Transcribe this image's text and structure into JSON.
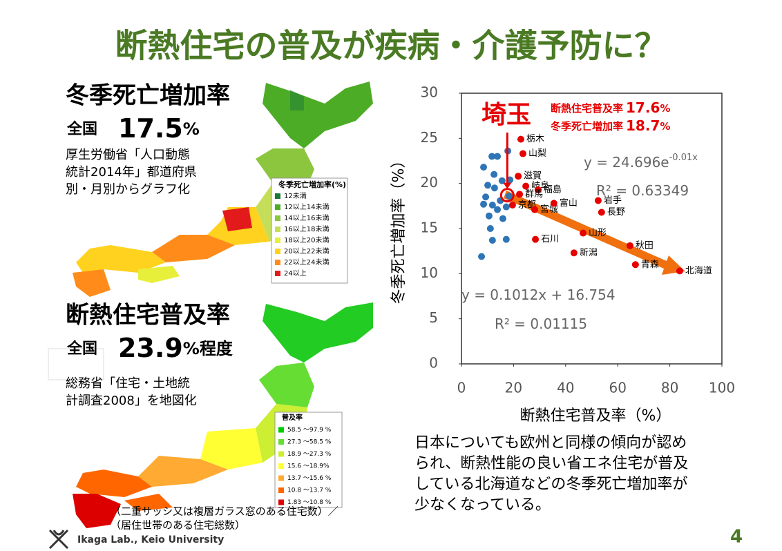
{
  "title": "断熱住宅の普及が疾病・介護予防に？",
  "left_top": {
    "heading": "冬季死亡増加率",
    "national": "全国",
    "value": "17.5",
    "unit": "%",
    "source": [
      "厚生労働省「人口動態",
      "統計2014年」都道府県",
      "別・月別からグラフ化"
    ]
  },
  "map1_legend": {
    "title": "冬季死亡増加率(%)",
    "items": [
      {
        "label": "12未満",
        "color": "#1b7837"
      },
      {
        "label": "12以上14未満",
        "color": "#4dac26"
      },
      {
        "label": "14以上16未満",
        "color": "#8cc63f"
      },
      {
        "label": "16以上18未満",
        "color": "#c5de5a"
      },
      {
        "label": "18以上20未満",
        "color": "#e8ef3a"
      },
      {
        "label": "20以上22未満",
        "color": "#ffd21f"
      },
      {
        "label": "22以上24未満",
        "color": "#ff8c1a"
      },
      {
        "label": "24以上",
        "color": "#e31a1c"
      }
    ]
  },
  "left_bottom": {
    "heading": "断熱住宅普及率",
    "national": "全国",
    "value": "23.9",
    "unit": "%程度",
    "source": [
      "総務省「住宅・土地統",
      "計調査2008」を地図化"
    ]
  },
  "map2_legend": {
    "title": "普及率",
    "items": [
      {
        "label": "58.5 ～97.9 %",
        "color": "#00cc00"
      },
      {
        "label": "27.3 ～58.5 %",
        "color": "#66dd33"
      },
      {
        "label": "18.9 ～27.3 %",
        "color": "#ccee33"
      },
      {
        "label": "15.6 ～18.9%",
        "color": "#ffff33"
      },
      {
        "label": "13.7 ～15.6 %",
        "color": "#ffaa33"
      },
      {
        "label": "10.8 ～13.7 %",
        "color": "#ff6600"
      },
      {
        "label": "1.83 ～10.8 %",
        "color": "#dd0000"
      }
    ]
  },
  "map2_note": [
    "（二重サッシ又は複層ガラス窓のある住宅数）／",
    "（居住世帯のある住宅総数）"
  ],
  "chart_data": {
    "type": "scatter",
    "xlabel": "断熱住宅普及率（%）",
    "ylabel": "冬季死亡増加率（%）",
    "xlim": [
      0,
      100
    ],
    "xticks": [
      0,
      20,
      40,
      60,
      80,
      100
    ],
    "ylim": [
      0,
      30
    ],
    "yticks": [
      0,
      5,
      10,
      15,
      20,
      25,
      30
    ],
    "series": [
      {
        "color": "#2e75b6",
        "x": [
          7.7,
          8.5,
          11.7,
          13.8,
          17.8,
          12.5,
          9.3,
          8.5,
          11.9,
          13.8,
          10.6,
          15.9,
          11.1,
          11.9,
          17.2,
          17.2,
          18.6,
          15.6,
          10.1,
          14.9,
          12.7,
          18.3
        ],
        "values": [
          11.9,
          21.8,
          23.0,
          23.0,
          23.6,
          21.0,
          18.5,
          17.7,
          17.6,
          17.1,
          16.4,
          16.1,
          15.0,
          13.7,
          13.8,
          17.4,
          20.4,
          20.3,
          19.8,
          18.1,
          19.5,
          18.6
        ]
      },
      {
        "color": "#e60000",
        "x": [
          22.8,
          23.6,
          21.8,
          24.7,
          29.4,
          22.3,
          19.6,
          28.1,
          35.5,
          52.5,
          53.8,
          46.7,
          28.4,
          64.7,
          43.2,
          66.8,
          83.8
        ],
        "values": [
          24.9,
          23.3,
          20.8,
          19.7,
          19.3,
          18.8,
          17.6,
          17.1,
          17.8,
          18.1,
          16.8,
          14.5,
          13.8,
          13.1,
          12.3,
          11.0,
          10.3
        ],
        "point_labels": [
          "栃木",
          "山梨",
          "滋賀",
          "岐阜",
          "福島",
          "群馬",
          "京都",
          "宮城",
          "富山",
          "岩手",
          "長野",
          "山形",
          "石川",
          "秋田",
          "新潟",
          "青森",
          "北海道"
        ]
      }
    ],
    "highlight": {
      "label": "埼玉",
      "x": 17.6,
      "y": 18.7,
      "lines": [
        {
          "name": "断熱住宅普及率",
          "value": "17.6",
          "unit": "%"
        },
        {
          "name": "冬季死亡増加率",
          "value": "18.7",
          "unit": "%"
        }
      ]
    },
    "annotations": [
      {
        "text": "y = 24.696e",
        "sup": "-0.01x"
      },
      {
        "text": "R² = 0.63349"
      },
      {
        "text": "y = 0.1012x + 16.754"
      },
      {
        "text": "R² = 0.01115"
      }
    ]
  },
  "description": [
    "日本についても欧州と同様の傾向が認め",
    "られ、断熱性能の良い省エネ住宅が普及",
    "している北海道などの冬季死亡増加率が",
    "少なくなっている。"
  ],
  "footer": {
    "lab": "Ikaga Lab., Keio University",
    "page": "4"
  }
}
